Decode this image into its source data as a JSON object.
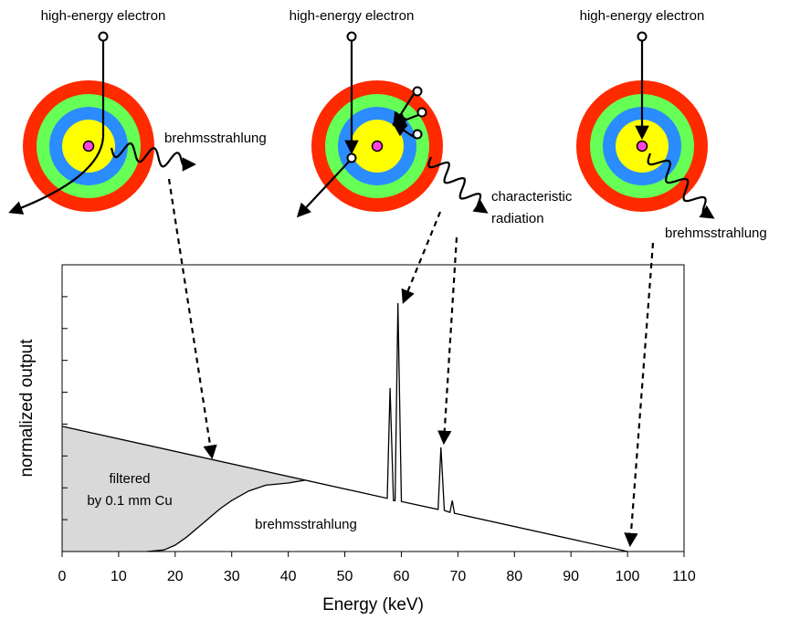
{
  "panels": [
    {
      "label": "high-energy electron",
      "emission": [
        "brehmsstrahlung"
      ]
    },
    {
      "label": "high-energy electron",
      "emission": [
        "characteristic",
        "radiation"
      ]
    },
    {
      "label": "high-energy electron",
      "emission": [
        "brehmsstrahlung"
      ]
    }
  ],
  "chart_data": {
    "type": "line",
    "x_label": "Energy (keV)",
    "y_label": "normalized output",
    "xlim": [
      0,
      110
    ],
    "xticks": [
      0,
      10,
      20,
      30,
      40,
      50,
      60,
      70,
      80,
      90,
      100,
      110
    ],
    "ylim": [
      0,
      9
    ],
    "yticks": [
      1,
      2,
      3,
      4,
      5,
      6,
      7,
      8
    ],
    "series": [
      {
        "color": "#000000",
        "x": [
          0,
          57.5,
          58,
          58.6,
          58.9,
          59.4,
          60,
          66.5,
          67,
          67.6,
          68.6,
          69,
          69.4,
          100
        ],
        "values": [
          3.93,
          1.67,
          5.13,
          1.6,
          1.6,
          7.8,
          1.57,
          1.32,
          3.27,
          1.29,
          1.23,
          1.6,
          1.2,
          0
        ]
      },
      {
        "color": "#000000",
        "x": [
          15,
          18,
          20,
          22,
          25,
          28,
          30,
          33,
          36,
          40,
          43
        ],
        "values": [
          0,
          0.05,
          0.2,
          0.45,
          0.9,
          1.35,
          1.6,
          1.9,
          2.08,
          2.15,
          2.24
        ]
      }
    ],
    "fill_color": "#d9d9d9",
    "annotations": {
      "filtered": [
        "filtered",
        "by 0.1 mm Cu"
      ],
      "curve": "brehmsstrahlung"
    }
  }
}
